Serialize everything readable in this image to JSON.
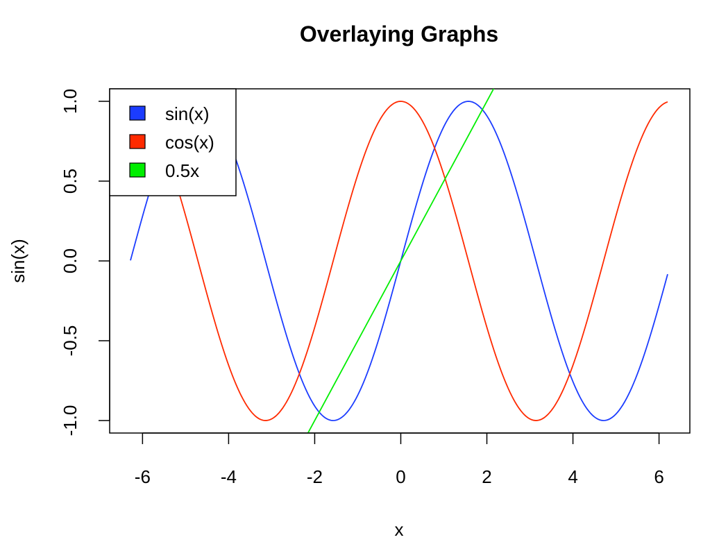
{
  "chart_data": {
    "type": "line",
    "title": "Overlaying Graphs",
    "xlabel": "x",
    "ylabel": "sin(x)",
    "xlim": [
      -6.28,
      6.2
    ],
    "ylim": [
      -1.0,
      1.0
    ],
    "xticks": [
      "-6",
      "-4",
      "-2",
      "0",
      "2",
      "4",
      "6"
    ],
    "yticks": [
      "-1.0",
      "-0.5",
      "0.0",
      "0.5",
      "1.0"
    ],
    "grid": false,
    "legend_position": "top-left",
    "series": [
      {
        "name": "sin(x)",
        "color": "#1b3cff",
        "x": [
          -6.28,
          -5.6,
          -4.8,
          -4.0,
          -3.2,
          -2.4,
          -1.6,
          -0.8,
          0.0,
          0.8,
          1.6,
          2.4,
          3.2,
          4.0,
          4.8,
          5.6,
          6.2
        ],
        "y": [
          0.0,
          0.63,
          1.0,
          0.76,
          0.06,
          -0.68,
          -1.0,
          -0.72,
          0.0,
          0.72,
          1.0,
          0.68,
          -0.06,
          -0.76,
          -1.0,
          -0.63,
          -0.08
        ]
      },
      {
        "name": "cos(x)",
        "color": "#ff2a00",
        "x": [
          -6.28,
          -5.6,
          -4.8,
          -4.0,
          -3.2,
          -2.4,
          -1.6,
          -0.8,
          0.0,
          0.8,
          1.6,
          2.4,
          3.2,
          4.0,
          4.8,
          5.6,
          6.2
        ],
        "y": [
          1.0,
          0.78,
          0.09,
          -0.65,
          -1.0,
          -0.74,
          -0.03,
          0.7,
          1.0,
          0.7,
          -0.03,
          -0.74,
          -1.0,
          -0.65,
          0.09,
          0.78,
          1.0
        ]
      },
      {
        "name": "0.5x",
        "color": "#00ee00",
        "x": [
          -2.2,
          2.2
        ],
        "y": [
          -1.1,
          1.1
        ]
      }
    ]
  }
}
